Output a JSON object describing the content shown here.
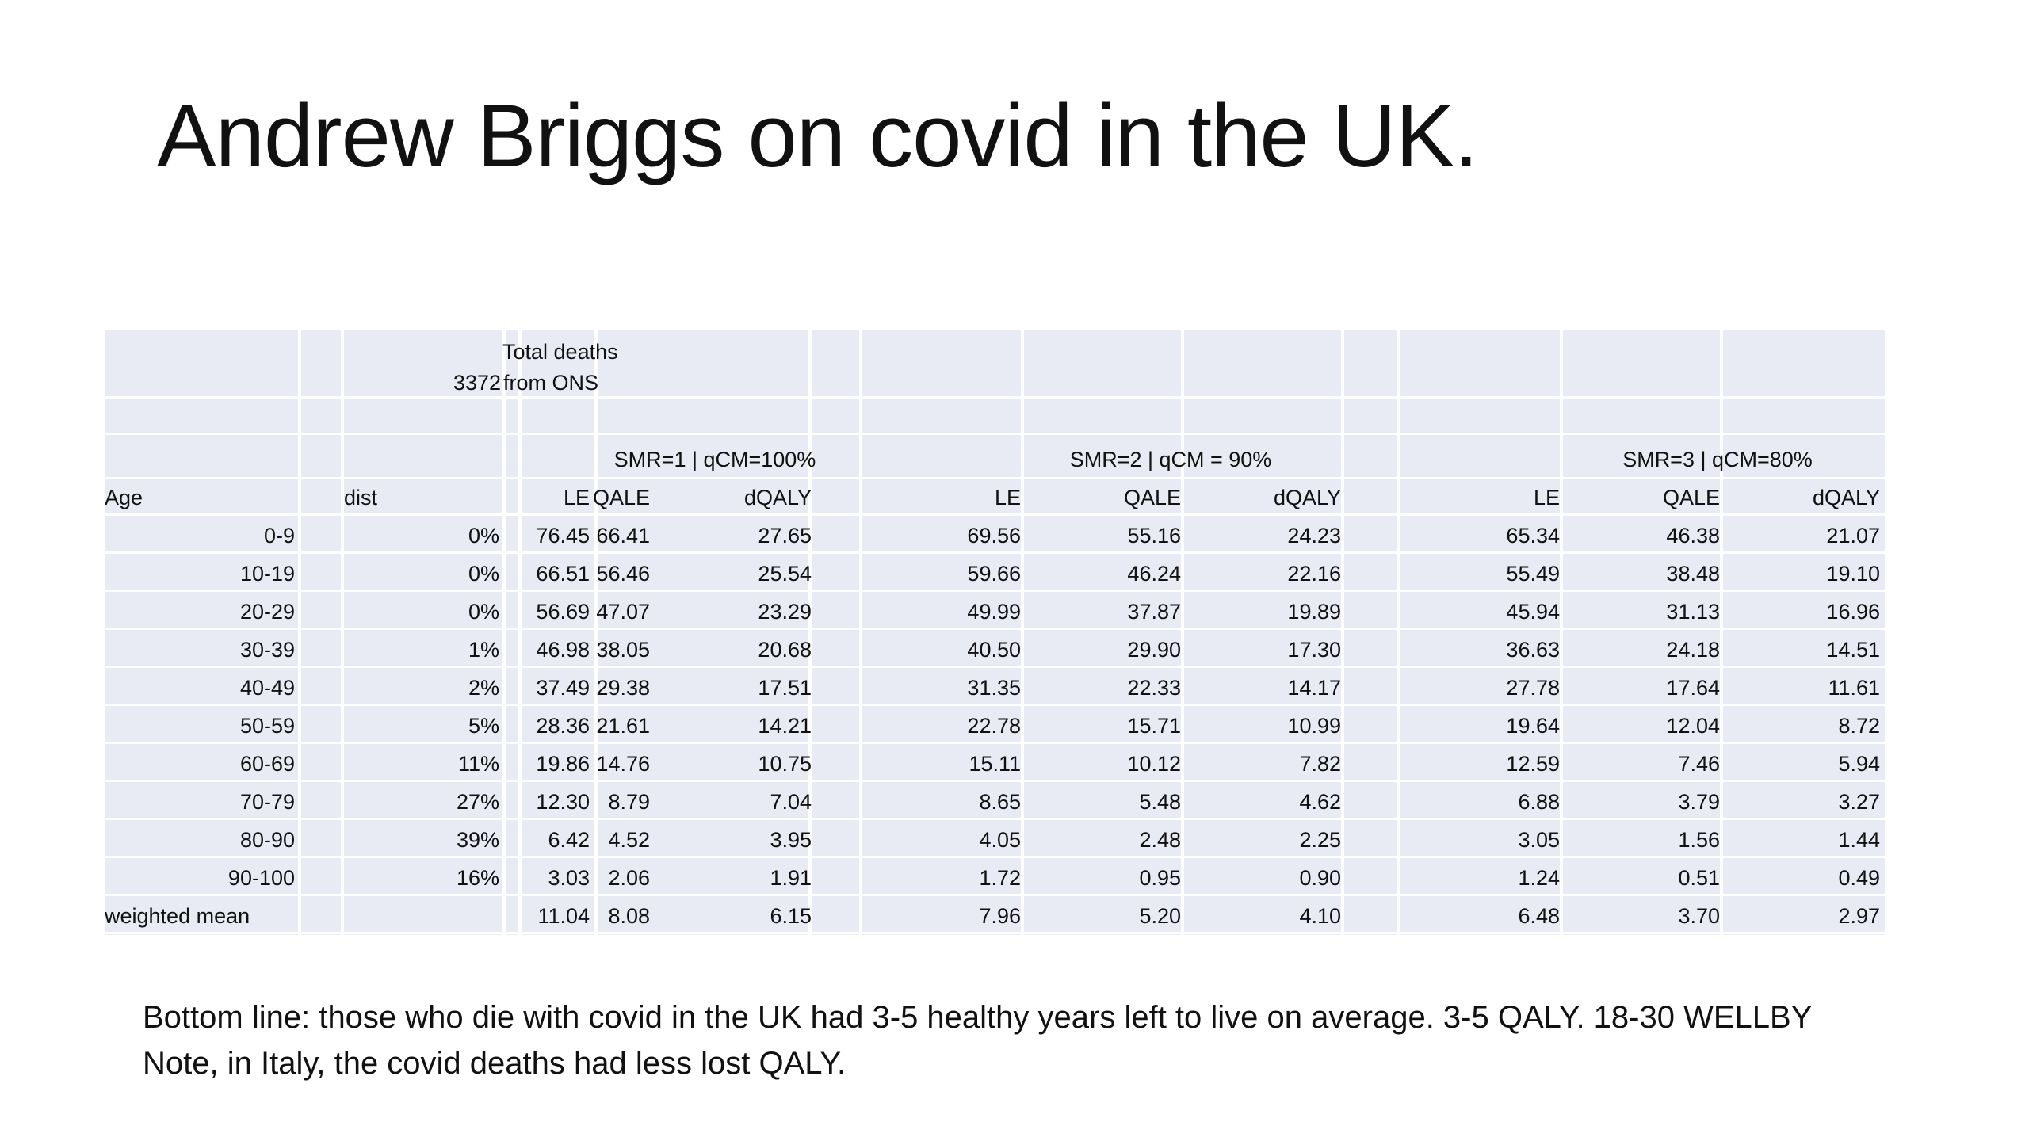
{
  "slide": {
    "title": "Andrew Briggs on covid in the UK."
  },
  "table": {
    "header_total_deaths_label": "Total deaths",
    "header_total_deaths_value": "3372",
    "header_total_deaths_source": "from ONS",
    "groups": [
      "SMR=1 | qCM=100%",
      "SMR=2 | qCM = 90%",
      "SMR=3 | qCM=80%"
    ],
    "columns": {
      "age": "Age",
      "dist": "dist",
      "le": "LE",
      "qale": "QALE",
      "dqaly": "dQALY"
    },
    "rows": [
      [
        "0-9",
        "0%",
        "76.45",
        "66.41",
        "27.65",
        "69.56",
        "55.16",
        "24.23",
        "65.34",
        "46.38",
        "21.07"
      ],
      [
        "10-19",
        "0%",
        "66.51",
        "56.46",
        "25.54",
        "59.66",
        "46.24",
        "22.16",
        "55.49",
        "38.48",
        "19.10"
      ],
      [
        "20-29",
        "0%",
        "56.69",
        "47.07",
        "23.29",
        "49.99",
        "37.87",
        "19.89",
        "45.94",
        "31.13",
        "16.96"
      ],
      [
        "30-39",
        "1%",
        "46.98",
        "38.05",
        "20.68",
        "40.50",
        "29.90",
        "17.30",
        "36.63",
        "24.18",
        "14.51"
      ],
      [
        "40-49",
        "2%",
        "37.49",
        "29.38",
        "17.51",
        "31.35",
        "22.33",
        "14.17",
        "27.78",
        "17.64",
        "11.61"
      ],
      [
        "50-59",
        "5%",
        "28.36",
        "21.61",
        "14.21",
        "22.78",
        "15.71",
        "10.99",
        "19.64",
        "12.04",
        "8.72"
      ],
      [
        "60-69",
        "11%",
        "19.86",
        "14.76",
        "10.75",
        "15.11",
        "10.12",
        "7.82",
        "12.59",
        "7.46",
        "5.94"
      ],
      [
        "70-79",
        "27%",
        "12.30",
        "8.79",
        "7.04",
        "8.65",
        "5.48",
        "4.62",
        "6.88",
        "3.79",
        "3.27"
      ],
      [
        "80-90",
        "39%",
        "6.42",
        "4.52",
        "3.95",
        "4.05",
        "2.48",
        "2.25",
        "3.05",
        "1.56",
        "1.44"
      ],
      [
        "90-100",
        "16%",
        "3.03",
        "2.06",
        "1.91",
        "1.72",
        "0.95",
        "0.90",
        "1.24",
        "0.51",
        "0.49"
      ]
    ],
    "weighted_mean": {
      "label": "weighted mean",
      "values": [
        "11.04",
        "8.08",
        "6.15",
        "7.96",
        "5.20",
        "4.10",
        "6.48",
        "3.70",
        "2.97"
      ]
    }
  },
  "footnote": {
    "line1": "Bottom line: those who die with covid in the UK had 3-5 healthy years left to live on average. 3-5 QALY. 18-30 WELLBY",
    "line2": "Note, in Italy, the covid deaths had less lost QALY."
  }
}
